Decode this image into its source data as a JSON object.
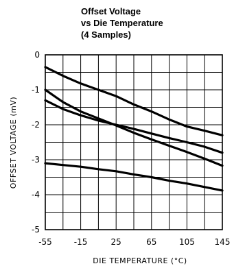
{
  "chart_data": {
    "type": "line",
    "title": [
      "Offset Voltage",
      "vs Die Temperature",
      "(4 Samples)"
    ],
    "xlabel": "DIE TEMPERATURE (°C)",
    "ylabel": "OFFSET VOLTAGE (mV)",
    "xlim": [
      -55,
      145
    ],
    "ylim": [
      -5,
      0
    ],
    "x_ticks": [
      -55,
      -15,
      25,
      65,
      105,
      145
    ],
    "y_ticks": [
      0,
      -1,
      -2,
      -3,
      -4,
      -5
    ],
    "x_tick_labels": [
      "-55",
      "-15",
      "25",
      "65",
      "105",
      "145"
    ],
    "y_tick_labels": [
      "0",
      "-1",
      "-2",
      "-3",
      "-4",
      "-5"
    ],
    "grid": true,
    "series": [
      {
        "x": [
          -55,
          -35,
          -15,
          5,
          25,
          45,
          65,
          85,
          105,
          125,
          145
        ],
        "y": [
          -0.35,
          -0.6,
          -0.82,
          -1.0,
          -1.18,
          -1.42,
          -1.62,
          -1.85,
          -2.05,
          -2.17,
          -2.3
        ]
      },
      {
        "x": [
          -55,
          -35,
          -15,
          5,
          25,
          45,
          65,
          85,
          105,
          125,
          145
        ],
        "y": [
          -1.0,
          -1.35,
          -1.62,
          -1.82,
          -2.02,
          -2.23,
          -2.42,
          -2.6,
          -2.78,
          -2.97,
          -3.17
        ]
      },
      {
        "x": [
          -55,
          -35,
          -15,
          5,
          25,
          45,
          65,
          85,
          105,
          125,
          145
        ],
        "y": [
          -1.3,
          -1.55,
          -1.73,
          -1.88,
          -2.0,
          -2.12,
          -2.25,
          -2.38,
          -2.5,
          -2.63,
          -2.8
        ]
      },
      {
        "x": [
          -55,
          -35,
          -15,
          5,
          25,
          45,
          65,
          85,
          105,
          125,
          145
        ],
        "y": [
          -3.1,
          -3.15,
          -3.2,
          -3.27,
          -3.33,
          -3.42,
          -3.5,
          -3.6,
          -3.68,
          -3.78,
          -3.88
        ]
      }
    ]
  }
}
